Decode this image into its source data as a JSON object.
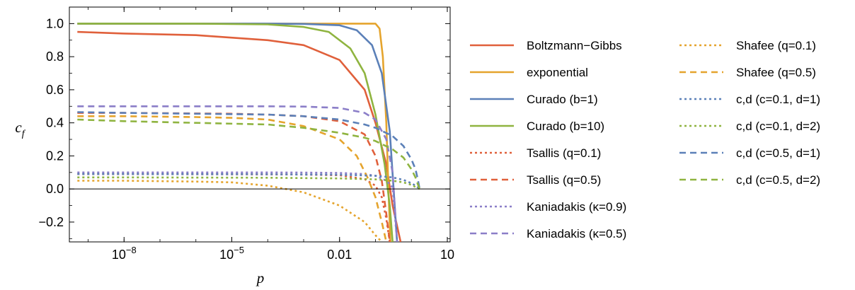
{
  "chart_data": {
    "type": "line",
    "xlabel": "p",
    "ylabel": "c",
    "ylabel_sub": "f",
    "x_scale": "log",
    "xlim": [
      3e-10,
      12
    ],
    "ylim": [
      -0.32,
      1.1
    ],
    "x_ticks": [
      {
        "value": 1e-08,
        "label": "10",
        "exp": "-8"
      },
      {
        "value": 1e-05,
        "label": "10",
        "exp": "-5"
      },
      {
        "value": 0.01,
        "label": "0.01",
        "exp": ""
      },
      {
        "value": 10,
        "label": "10",
        "exp": ""
      }
    ],
    "y_ticks": [
      {
        "value": -0.2,
        "label": "−0.2"
      },
      {
        "value": 0.0,
        "label": "0.0"
      },
      {
        "value": 0.2,
        "label": "0.2"
      },
      {
        "value": 0.4,
        "label": "0.4"
      },
      {
        "value": 0.6,
        "label": "0.6"
      },
      {
        "value": 0.8,
        "label": "0.8"
      },
      {
        "value": 1.0,
        "label": "1.0"
      }
    ],
    "zero_line": true,
    "legend_position": "right",
    "series": [
      {
        "name": "Boltzmann−Gibbs",
        "color": "#e0603b",
        "dash": "solid",
        "x": [
          5e-10,
          1e-08,
          1e-06,
          0.0001,
          0.001,
          0.01,
          0.05,
          0.1,
          0.2,
          0.3,
          0.5
        ],
        "y": [
          0.95,
          0.94,
          0.93,
          0.9,
          0.87,
          0.78,
          0.6,
          0.4,
          0.15,
          -0.1,
          -0.32
        ]
      },
      {
        "name": "exponential",
        "color": "#e5a42d",
        "dash": "solid",
        "x": [
          5e-10,
          1e-08,
          0.0001,
          0.05,
          0.1,
          0.13,
          0.16,
          0.2,
          0.23,
          0.26
        ],
        "y": [
          1.0,
          1.0,
          1.0,
          1.0,
          1.0,
          0.97,
          0.8,
          0.4,
          0.0,
          -0.32
        ]
      },
      {
        "name": "Curado (b=1)",
        "color": "#5b80b8",
        "dash": "solid",
        "x": [
          5e-10,
          1e-08,
          0.0001,
          0.001,
          0.01,
          0.03,
          0.08,
          0.15,
          0.25,
          0.32,
          0.4
        ],
        "y": [
          1.0,
          1.0,
          1.0,
          0.998,
          0.99,
          0.96,
          0.87,
          0.7,
          0.35,
          0.0,
          -0.32
        ]
      },
      {
        "name": "Curado (b=10)",
        "color": "#8fb440",
        "dash": "solid",
        "x": [
          5e-10,
          1e-08,
          1e-06,
          0.0001,
          0.001,
          0.005,
          0.02,
          0.05,
          0.1,
          0.18,
          0.25,
          0.3
        ],
        "y": [
          1.0,
          1.0,
          1.0,
          0.995,
          0.98,
          0.95,
          0.85,
          0.7,
          0.45,
          0.15,
          -0.1,
          -0.32
        ]
      },
      {
        "name": "Tsallis (q=0.1)",
        "color": "#e0603b",
        "dash": "dot",
        "x": [
          5e-10,
          1e-08,
          1e-05,
          0.001,
          0.01,
          0.05,
          0.1,
          0.15,
          0.2,
          0.25
        ],
        "y": [
          0.09,
          0.09,
          0.089,
          0.087,
          0.083,
          0.06,
          0.02,
          -0.05,
          -0.18,
          -0.32
        ]
      },
      {
        "name": "Tsallis (q=0.5)",
        "color": "#e0603b",
        "dash": "dash",
        "x": [
          5e-10,
          1e-08,
          1e-05,
          0.0001,
          0.001,
          0.01,
          0.05,
          0.1,
          0.15,
          0.2,
          0.25
        ],
        "y": [
          0.46,
          0.46,
          0.455,
          0.45,
          0.44,
          0.41,
          0.33,
          0.2,
          0.05,
          -0.15,
          -0.32
        ]
      },
      {
        "name": "Kaniadakis (κ=0.9)",
        "color": "#8b7ec8",
        "dash": "dot",
        "x": [
          5e-10,
          1e-08,
          0.0001,
          0.001,
          0.01,
          0.05,
          0.1,
          0.2,
          0.3,
          0.4
        ],
        "y": [
          0.1,
          0.1,
          0.1,
          0.099,
          0.097,
          0.09,
          0.08,
          0.05,
          0.01,
          -0.32
        ]
      },
      {
        "name": "Kaniadakis (κ=0.5)",
        "color": "#8b7ec8",
        "dash": "dash",
        "x": [
          5e-10,
          1e-08,
          0.0001,
          0.001,
          0.01,
          0.05,
          0.1,
          0.2,
          0.3,
          0.4
        ],
        "y": [
          0.5,
          0.5,
          0.5,
          0.498,
          0.49,
          0.46,
          0.42,
          0.3,
          0.1,
          -0.32
        ]
      },
      {
        "name": "Shafee (q=0.1)",
        "color": "#e5a42d",
        "dash": "dot",
        "x": [
          5e-10,
          1e-08,
          1e-06,
          1e-05,
          0.0001,
          0.001,
          0.01,
          0.05,
          0.1,
          0.15
        ],
        "y": [
          0.05,
          0.05,
          0.045,
          0.04,
          0.02,
          -0.02,
          -0.1,
          -0.2,
          -0.28,
          -0.32
        ]
      },
      {
        "name": "Shafee (q=0.5)",
        "color": "#e5a42d",
        "dash": "dash",
        "x": [
          5e-10,
          1e-08,
          1e-06,
          1e-05,
          0.0001,
          0.001,
          0.01,
          0.03,
          0.06,
          0.1,
          0.15,
          0.2
        ],
        "y": [
          0.44,
          0.44,
          0.435,
          0.43,
          0.42,
          0.38,
          0.3,
          0.2,
          0.07,
          -0.05,
          -0.2,
          -0.32
        ]
      },
      {
        "name": "c,d (c=0.1, d=1)",
        "color": "#5b80b8",
        "dash": "dot",
        "x": [
          5e-10,
          1e-08,
          0.0001,
          0.01,
          0.1,
          0.3,
          0.6,
          1.0,
          1.3,
          1.5,
          1.7
        ],
        "y": [
          0.09,
          0.09,
          0.089,
          0.086,
          0.08,
          0.07,
          0.055,
          0.035,
          0.02,
          0.01,
          0.0
        ]
      },
      {
        "name": "c,d (c=0.1, d=2)",
        "color": "#8fb440",
        "dash": "dot",
        "x": [
          5e-10,
          1e-08,
          0.0001,
          0.01,
          0.1,
          0.3,
          0.6,
          1.0,
          1.3,
          1.5,
          1.7
        ],
        "y": [
          0.07,
          0.07,
          0.068,
          0.064,
          0.058,
          0.05,
          0.04,
          0.025,
          0.012,
          0.005,
          0.0
        ]
      },
      {
        "name": "c,d (c=0.5, d=1)",
        "color": "#5b80b8",
        "dash": "dash",
        "x": [
          5e-10,
          1e-08,
          1e-06,
          0.0001,
          0.001,
          0.01,
          0.05,
          0.1,
          0.3,
          0.6,
          1.0,
          1.3,
          1.5,
          1.7
        ],
        "y": [
          0.465,
          0.46,
          0.455,
          0.45,
          0.44,
          0.42,
          0.39,
          0.37,
          0.32,
          0.26,
          0.18,
          0.12,
          0.06,
          0.0
        ]
      },
      {
        "name": "c,d (c=0.5, d=2)",
        "color": "#8fb440",
        "dash": "dash",
        "x": [
          5e-10,
          1e-08,
          1e-06,
          0.0001,
          0.001,
          0.01,
          0.05,
          0.1,
          0.3,
          0.6,
          1.0,
          1.3,
          1.5,
          1.7
        ],
        "y": [
          0.42,
          0.41,
          0.4,
          0.39,
          0.37,
          0.34,
          0.31,
          0.29,
          0.24,
          0.19,
          0.12,
          0.07,
          0.03,
          0.0
        ]
      }
    ]
  }
}
